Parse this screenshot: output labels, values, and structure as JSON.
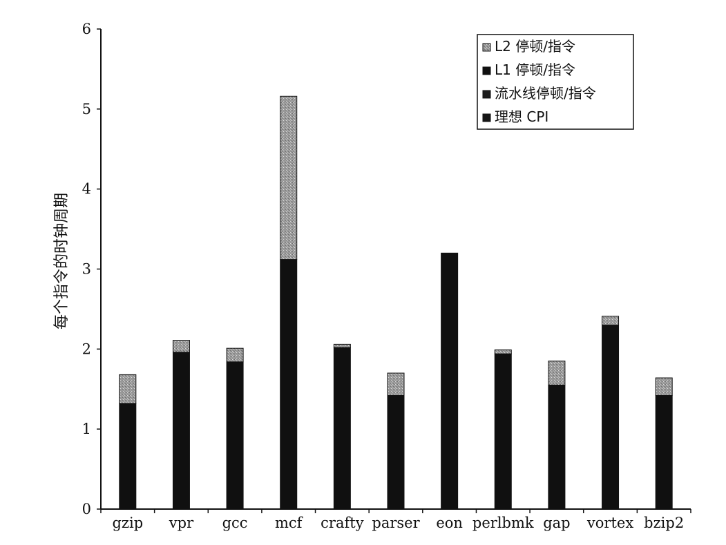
{
  "chart_data": {
    "type": "bar",
    "stacked": true,
    "ylabel": "每个指令的时钟周期",
    "xlabel": "",
    "ylim": [
      0,
      6
    ],
    "yticks": [
      0,
      1,
      2,
      3,
      4,
      5,
      6
    ],
    "grid": false,
    "legend_position": "top-right",
    "categories": [
      "gzip",
      "vpr",
      "gcc",
      "mcf",
      "crafty",
      "parser",
      "eon",
      "perlbmk",
      "gap",
      "vortex",
      "bzip2"
    ],
    "series": [
      {
        "name": "理想 CPI",
        "color": "#161616",
        "values": [
          0.0,
          0.0,
          0.0,
          0.0,
          0.0,
          0.0,
          0.0,
          0.0,
          0.0,
          0.0,
          0.0
        ]
      },
      {
        "name": "流水线停顿/指令",
        "color": "#1d1d1d",
        "values": [
          0.0,
          0.0,
          0.0,
          0.0,
          0.0,
          0.0,
          0.0,
          0.0,
          0.0,
          0.0,
          0.0
        ]
      },
      {
        "name": "L1 停顿/指令",
        "color": "#101010",
        "values": [
          1.32,
          1.96,
          1.84,
          3.12,
          2.02,
          1.42,
          3.2,
          1.94,
          1.55,
          2.3,
          1.42
        ]
      },
      {
        "name": "L2 停顿/指令",
        "color": "#a8a8a8",
        "values": [
          0.36,
          0.15,
          0.17,
          2.04,
          0.04,
          0.28,
          0.0,
          0.05,
          0.3,
          0.11,
          0.22
        ]
      }
    ],
    "legend_order": [
      "L2 停顿/指令",
      "L1 停顿/指令",
      "流水线停顿/指令",
      "理想 CPI"
    ]
  }
}
